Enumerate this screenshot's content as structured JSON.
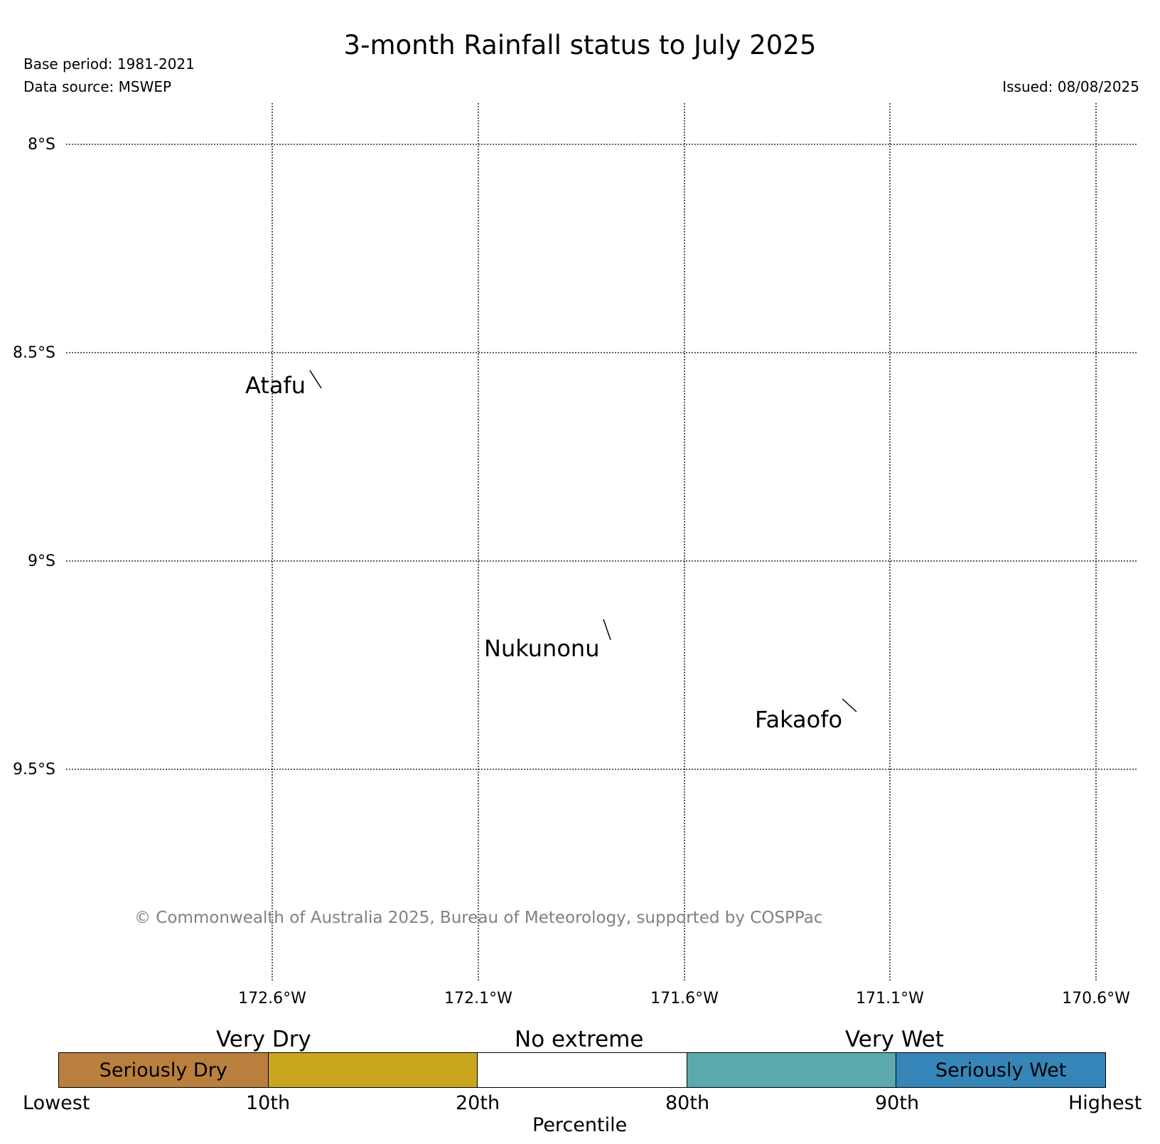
{
  "header": {
    "title": "3-month Rainfall status to July 2025",
    "base_period": "Base period: 1981-2021",
    "data_source": "Data source: MSWEP",
    "issued": "Issued: 08/08/2025"
  },
  "map": {
    "lat_labels": [
      "8°S",
      "8.5°S",
      "9°S",
      "9.5°S"
    ],
    "lon_labels": [
      "172.6°W",
      "172.1°W",
      "171.6°W",
      "171.1°W",
      "170.6°W"
    ],
    "places": [
      {
        "name": "Atafu"
      },
      {
        "name": "Nukunonu"
      },
      {
        "name": "Fakaofo"
      }
    ],
    "copyright": "© Commonwealth of Australia 2025, Bureau of Meteorology, supported by COSPPac",
    "gridlines": "on"
  },
  "legend": {
    "categories": [
      "Very Dry",
      "No extreme",
      "Very Wet"
    ],
    "segments": [
      {
        "label": "Seriously Dry",
        "color": "#b97f3c"
      },
      {
        "label": "",
        "color": "#c8a61e"
      },
      {
        "label": "",
        "color": "#ffffff"
      },
      {
        "label": "",
        "color": "#5ca9ad"
      },
      {
        "label": "Seriously Wet",
        "color": "#3685b8"
      }
    ],
    "ticks": [
      "Lowest",
      "10th",
      "20th",
      "80th",
      "90th",
      "Highest"
    ],
    "axis_label": "Percentile"
  }
}
